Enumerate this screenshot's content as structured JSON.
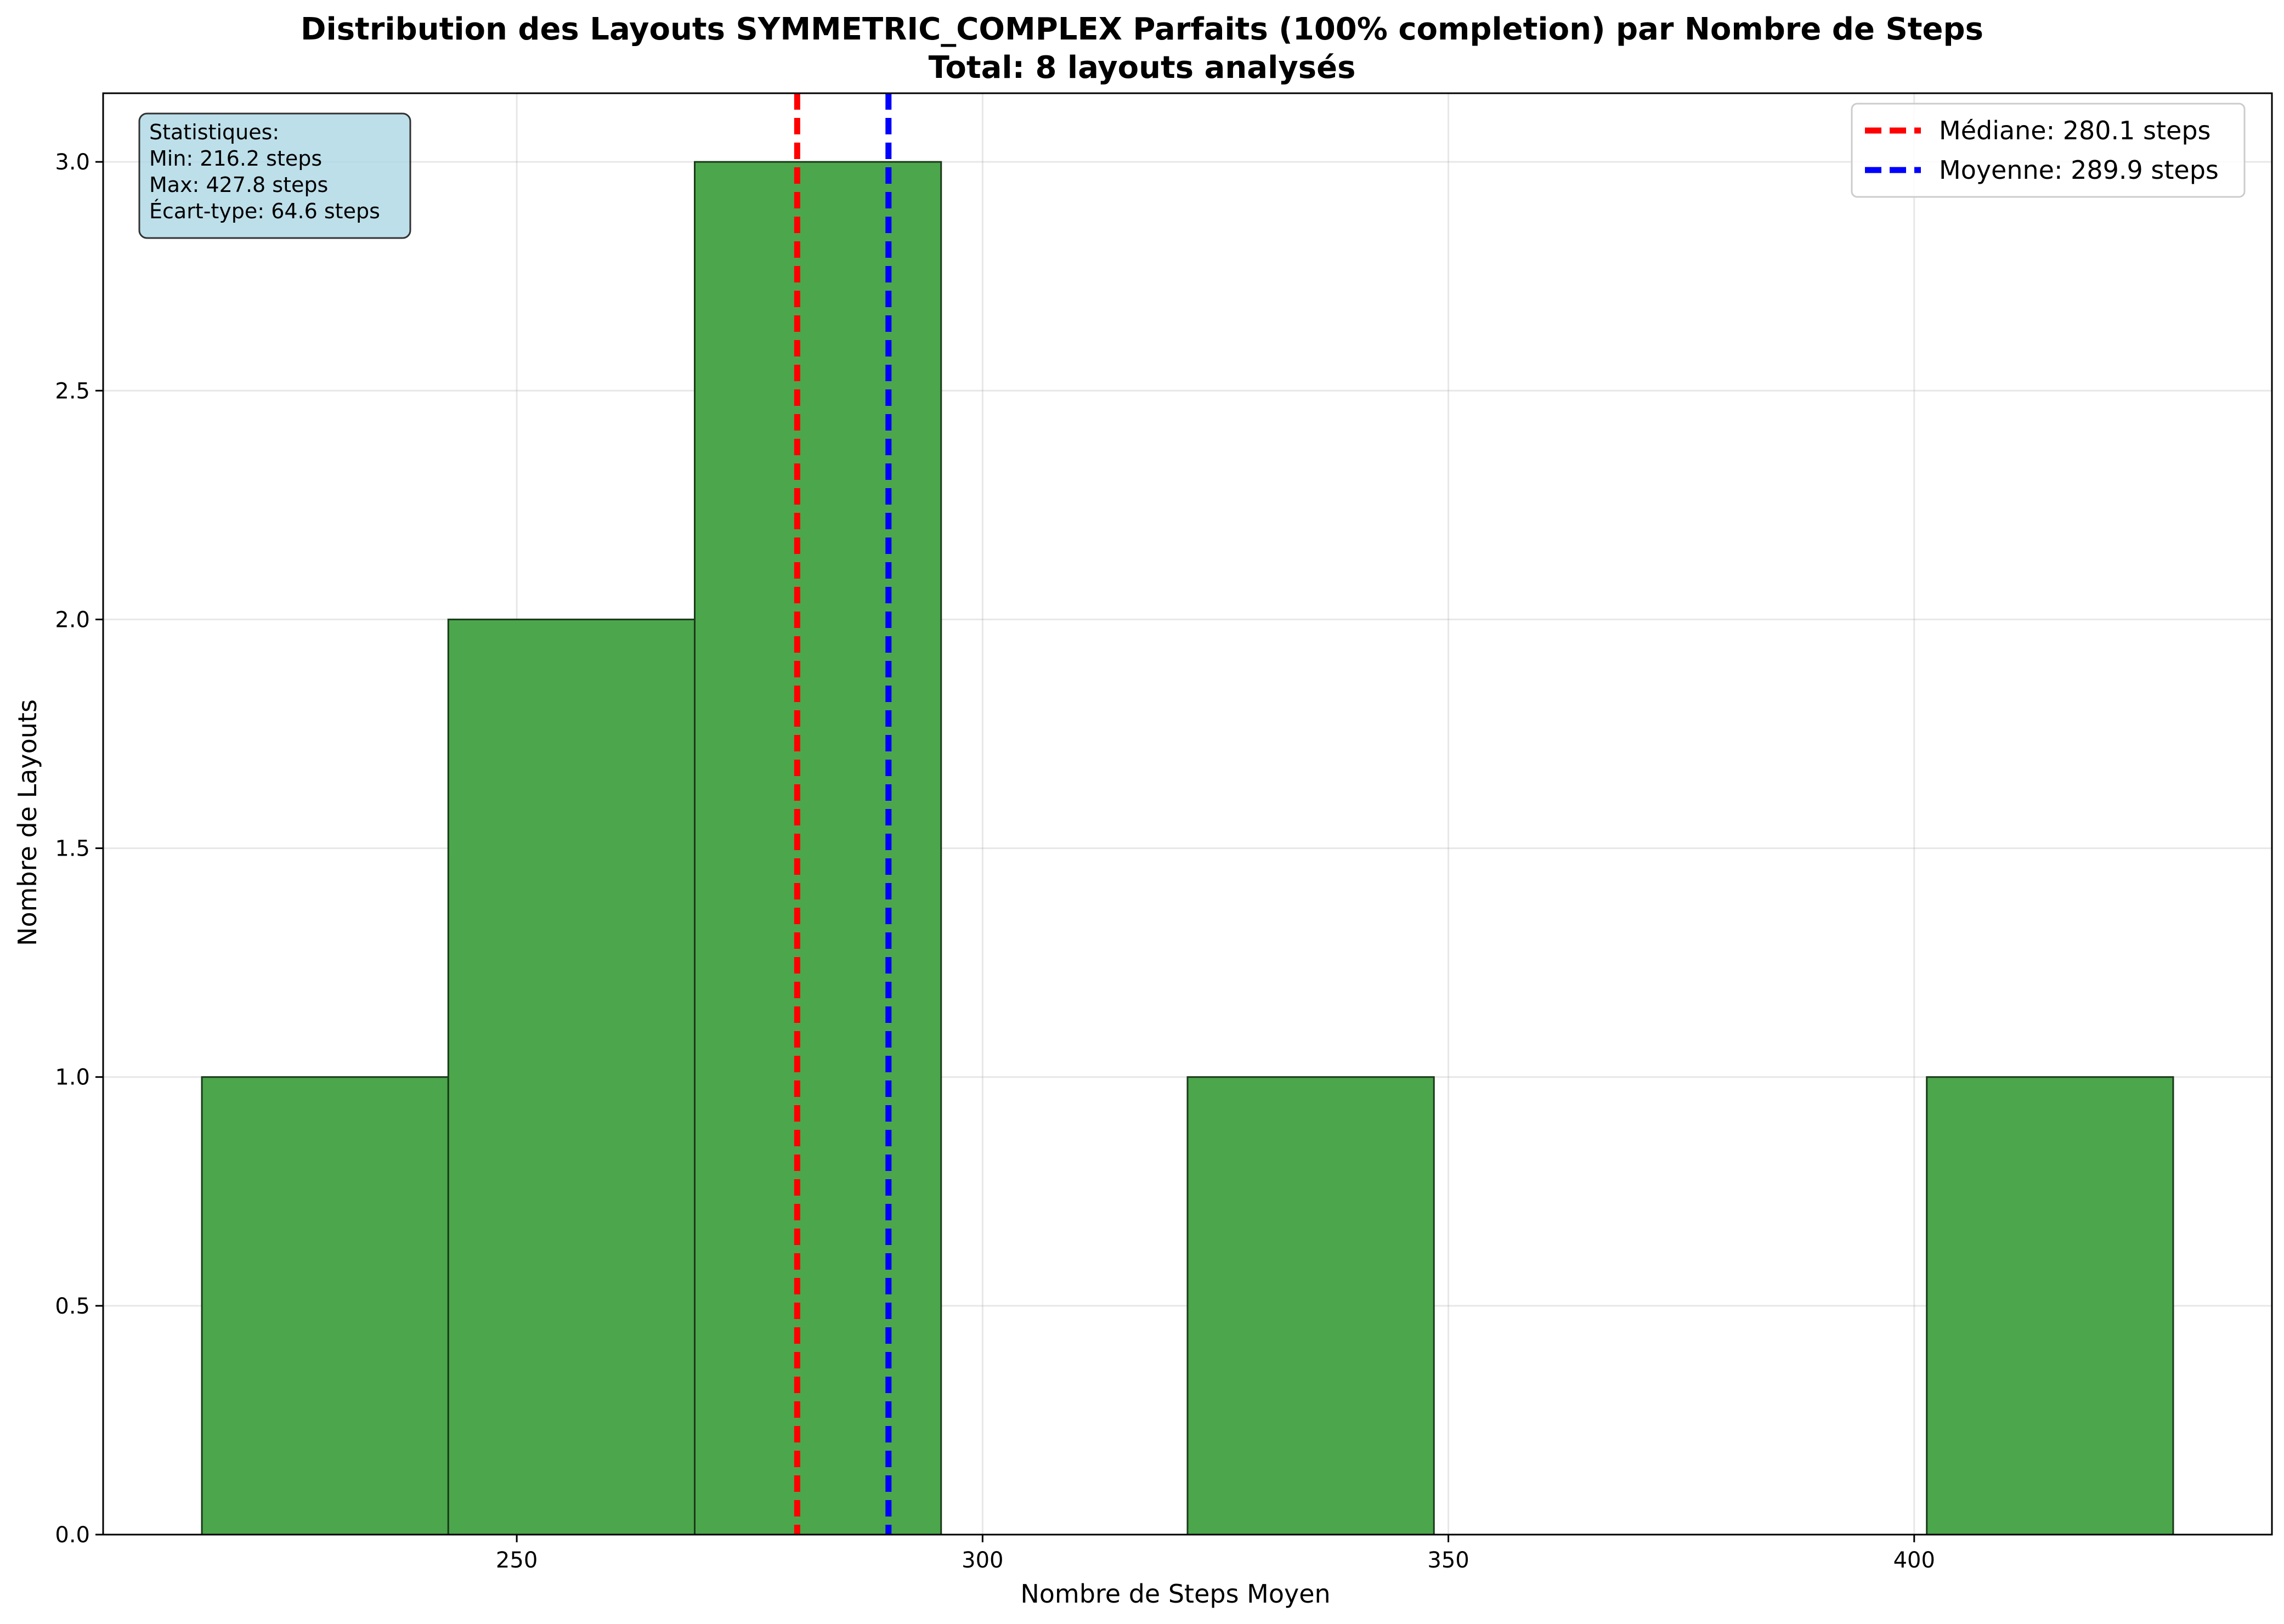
{
  "chart_data": {
    "type": "bar",
    "title": "Distribution des Layouts SYMMETRIC_COMPLEX Parfaits (100% completion) par Nombre de Steps",
    "subtitle": "Total: 8 layouts analysés",
    "xlabel": "Nombre de Steps Moyen",
    "ylabel": "Nombre de Layouts",
    "xlim": [
      205.6,
      438.4
    ],
    "ylim": [
      0,
      3.15
    ],
    "xticks": [
      250,
      300,
      350,
      400
    ],
    "yticks": [
      0.0,
      0.5,
      1.0,
      1.5,
      2.0,
      2.5,
      3.0
    ],
    "xtick_labels": [
      "250",
      "300",
      "350",
      "400"
    ],
    "ytick_labels": [
      "0.0",
      "0.5",
      "1.0",
      "1.5",
      "2.0",
      "2.5",
      "3.0"
    ],
    "bin_edges": [
      216.2,
      242.65,
      269.1,
      295.55,
      322.0,
      348.45,
      374.9,
      401.35,
      427.8
    ],
    "values": [
      1,
      2,
      3,
      0,
      1,
      0,
      0,
      1
    ],
    "bar_color": "#4ca64c",
    "bar_edge_color": "#1a3a1a",
    "grid": true,
    "reference_lines": [
      {
        "value": 280.1,
        "color": "#ff0000",
        "label": "Médiane: 280.1 steps"
      },
      {
        "value": 289.9,
        "color": "#0000ff",
        "label": "Moyenne: 289.9 steps"
      }
    ],
    "legend_position": "upper right",
    "stats_box": {
      "lines": [
        "Statistiques:",
        "Min: 216.2 steps",
        "Max: 427.8 steps",
        "Écart-type: 64.6 steps"
      ],
      "background": "#add8e6"
    }
  }
}
